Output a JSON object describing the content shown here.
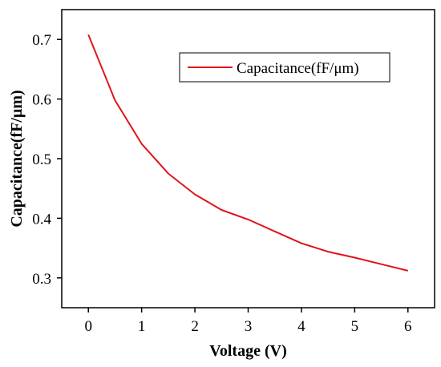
{
  "chart_data": {
    "type": "line",
    "title": "",
    "xlabel": "Voltage (V)",
    "ylabel": "Capacitance(fF/μm)",
    "xlim": [
      -0.5,
      6.5
    ],
    "ylim": [
      0.25,
      0.75
    ],
    "xticks": [
      0,
      1,
      2,
      3,
      4,
      5,
      6
    ],
    "yticks": [
      0.3,
      0.4,
      0.5,
      0.6,
      0.7
    ],
    "xtick_labels": [
      "0",
      "1",
      "2",
      "3",
      "4",
      "5",
      "6"
    ],
    "ytick_labels": [
      "0.3",
      "0.4",
      "0.5",
      "0.6",
      "0.7"
    ],
    "grid": false,
    "legend_position": "top-right",
    "series": [
      {
        "name": "Capacitance(fF/μm)",
        "color": "#e0141c",
        "x": [
          0,
          0.5,
          1,
          1.5,
          2,
          2.5,
          3,
          3.5,
          4,
          4.5,
          5,
          5.5,
          6
        ],
        "y": [
          0.708,
          0.598,
          0.525,
          0.475,
          0.44,
          0.414,
          0.398,
          0.378,
          0.358,
          0.344,
          0.334,
          0.323,
          0.312
        ]
      }
    ]
  }
}
